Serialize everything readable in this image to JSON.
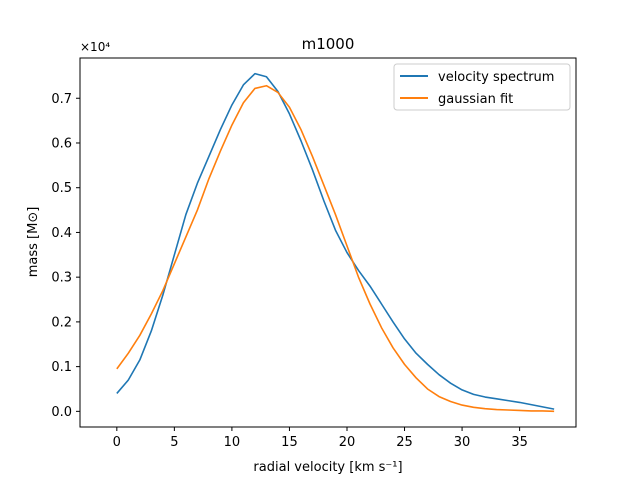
{
  "chart_data": {
    "type": "line",
    "title": "m1000",
    "xlabel": "radial velocity [km s⁻¹]",
    "ylabel": "mass [M⊙]",
    "y_multiplier": "×10⁴",
    "xlim": [
      -3.2,
      39.9
    ],
    "ylim": [
      -0.035,
      0.79
    ],
    "xticks": [
      0,
      5,
      10,
      15,
      20,
      25,
      30,
      35
    ],
    "yticks": [
      0.0,
      0.1,
      0.2,
      0.3,
      0.4,
      0.5,
      0.6,
      0.7
    ],
    "ytick_labels": [
      "0.0",
      "0.1",
      "0.2",
      "0.3",
      "0.4",
      "0.5",
      "0.6",
      "0.7"
    ],
    "legend_position": "top-right",
    "grid": false,
    "x": [
      0,
      1,
      2,
      3,
      4,
      5,
      6,
      7,
      8,
      9,
      10,
      11,
      12,
      13,
      14,
      15,
      16,
      17,
      18,
      19,
      20,
      21,
      22,
      23,
      24,
      25,
      26,
      27,
      28,
      29,
      30,
      31,
      32,
      33,
      34,
      35,
      36,
      37,
      38
    ],
    "series": [
      {
        "name": "velocity spectrum",
        "color": "#1f77b4",
        "values": [
          0.04,
          0.07,
          0.115,
          0.18,
          0.26,
          0.35,
          0.44,
          0.51,
          0.57,
          0.63,
          0.685,
          0.73,
          0.755,
          0.748,
          0.715,
          0.665,
          0.605,
          0.54,
          0.47,
          0.405,
          0.355,
          0.315,
          0.28,
          0.24,
          0.2,
          0.162,
          0.13,
          0.105,
          0.082,
          0.063,
          0.048,
          0.038,
          0.032,
          0.028,
          0.024,
          0.02,
          0.015,
          0.01,
          0.005
        ]
      },
      {
        "name": "gaussian fit",
        "color": "#ff7f0e",
        "values": [
          0.095,
          0.13,
          0.17,
          0.218,
          0.27,
          0.33,
          0.39,
          0.45,
          0.52,
          0.582,
          0.64,
          0.69,
          0.722,
          0.728,
          0.713,
          0.68,
          0.63,
          0.57,
          0.505,
          0.44,
          0.37,
          0.3,
          0.24,
          0.187,
          0.142,
          0.105,
          0.075,
          0.05,
          0.033,
          0.022,
          0.014,
          0.009,
          0.006,
          0.004,
          0.003,
          0.002,
          0.001,
          0.001,
          0.0
        ]
      }
    ]
  }
}
